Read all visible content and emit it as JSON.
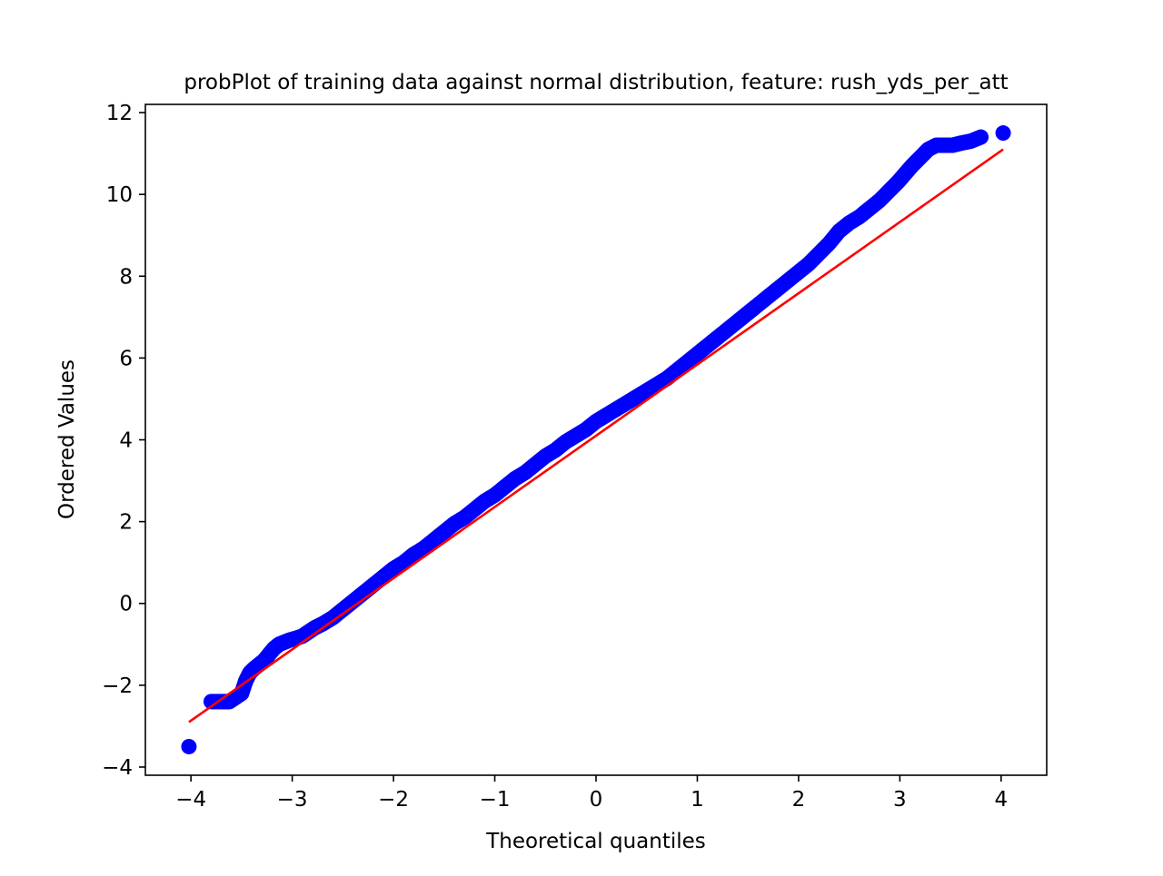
{
  "chart_data": {
    "type": "scatter",
    "title": "probPlot of training data against normal distribution, feature: rush_yds_per_att",
    "xlabel": "Theoretical quantiles",
    "ylabel": "Ordered Values",
    "xlim": [
      -4.45,
      4.45
    ],
    "ylim": [
      -4.2,
      12.2
    ],
    "xticks": [
      -4,
      -3,
      -2,
      -1,
      0,
      1,
      2,
      3,
      4
    ],
    "xtick_labels": [
      "−4",
      "−3",
      "−2",
      "−1",
      "0",
      "1",
      "2",
      "3",
      "4"
    ],
    "yticks": [
      -4,
      -2,
      0,
      2,
      4,
      6,
      8,
      10,
      12
    ],
    "ytick_labels": [
      "−4",
      "−2",
      "0",
      "2",
      "4",
      "6",
      "8",
      "10",
      "12"
    ],
    "grid": false,
    "series": [
      {
        "kind": "points",
        "color": "#0000ff",
        "x": [
          -4.02,
          -3.8,
          -3.7,
          -3.62,
          -3.56,
          -3.5,
          -3.46,
          -3.42,
          -3.38,
          -3.33,
          -3.28,
          -3.23,
          -3.18,
          -3.13,
          -3.08,
          -3.03,
          -2.96,
          -2.9,
          -2.84,
          -2.78,
          -2.7,
          -2.6,
          -2.5,
          -2.4,
          -2.3,
          -2.2,
          -2.1,
          -2.0,
          -1.9,
          -1.8,
          -1.7,
          -1.6,
          -1.5,
          -1.4,
          -1.3,
          -1.2,
          -1.1,
          -1.0,
          -0.9,
          -0.8,
          -0.7,
          -0.6,
          -0.5,
          -0.4,
          -0.3,
          -0.2,
          -0.1,
          0.0,
          0.1,
          0.2,
          0.3,
          0.4,
          0.5,
          0.6,
          0.7,
          0.8,
          0.9,
          1.0,
          1.1,
          1.2,
          1.3,
          1.4,
          1.5,
          1.6,
          1.7,
          1.8,
          1.9,
          2.0,
          2.1,
          2.2,
          2.3,
          2.4,
          2.5,
          2.6,
          2.7,
          2.8,
          2.9,
          2.98,
          3.05,
          3.12,
          3.2,
          3.28,
          3.36,
          3.44,
          3.52,
          3.6,
          3.7,
          3.8,
          4.02
        ],
        "y": [
          -3.5,
          -2.4,
          -2.4,
          -2.4,
          -2.3,
          -2.2,
          -1.9,
          -1.7,
          -1.6,
          -1.5,
          -1.4,
          -1.25,
          -1.1,
          -1.0,
          -0.95,
          -0.9,
          -0.85,
          -0.8,
          -0.7,
          -0.6,
          -0.5,
          -0.35,
          -0.15,
          0.05,
          0.25,
          0.45,
          0.65,
          0.85,
          1.0,
          1.2,
          1.35,
          1.55,
          1.75,
          1.95,
          2.1,
          2.3,
          2.5,
          2.65,
          2.85,
          3.05,
          3.2,
          3.4,
          3.6,
          3.75,
          3.95,
          4.1,
          4.25,
          4.45,
          4.6,
          4.75,
          4.9,
          5.05,
          5.2,
          5.35,
          5.5,
          5.7,
          5.9,
          6.1,
          6.3,
          6.5,
          6.7,
          6.9,
          7.1,
          7.3,
          7.5,
          7.7,
          7.9,
          8.1,
          8.3,
          8.55,
          8.8,
          9.1,
          9.3,
          9.45,
          9.65,
          9.85,
          10.1,
          10.3,
          10.5,
          10.7,
          10.9,
          11.1,
          11.2,
          11.2,
          11.2,
          11.25,
          11.3,
          11.4,
          11.5
        ]
      },
      {
        "kind": "fit-line",
        "color": "#ff0000",
        "x": [
          -4.02,
          4.02
        ],
        "y": [
          -2.9,
          11.1
        ]
      }
    ]
  }
}
